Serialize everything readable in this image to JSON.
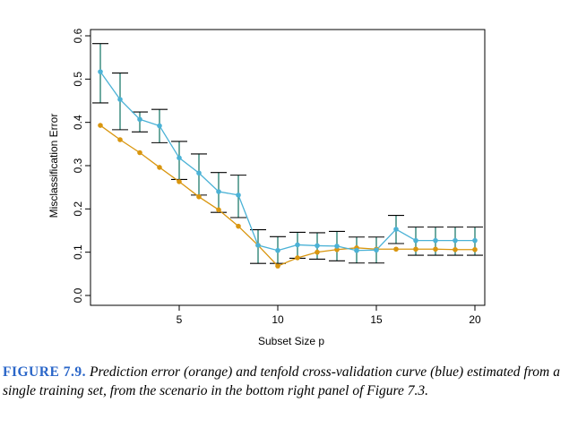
{
  "chart_data": {
    "type": "line",
    "xlabel": "Subset Size p",
    "ylabel": "Misclassification Error",
    "xlim": [
      0.5,
      20.5
    ],
    "ylim": [
      0.0,
      0.6
    ],
    "xticks": [
      5,
      10,
      15,
      20
    ],
    "yticks": [
      0.0,
      0.1,
      0.2,
      0.3,
      0.4,
      0.5,
      0.6
    ],
    "xtick_labels": [
      "5",
      "10",
      "15",
      "20"
    ],
    "ytick_labels": [
      "0.0",
      "0.1",
      "0.2",
      "0.3",
      "0.4",
      "0.5",
      "0.6"
    ],
    "grid": false,
    "x": [
      1,
      2,
      3,
      4,
      5,
      6,
      7,
      8,
      9,
      10,
      11,
      12,
      13,
      14,
      15,
      16,
      17,
      18,
      19,
      20
    ],
    "series": [
      {
        "key": "prediction_error",
        "color": "#d9960f",
        "values": [
          0.393,
          0.36,
          0.33,
          0.296,
          0.263,
          0.228,
          0.198,
          0.16,
          0.116,
          0.068,
          0.087,
          0.1,
          0.106,
          0.11,
          0.107,
          0.107,
          0.107,
          0.107,
          0.106,
          0.106
        ]
      },
      {
        "key": "cv_error",
        "color": "#4bb2d6",
        "error_bar_color": "#1f7d6c",
        "values": [
          0.517,
          0.453,
          0.407,
          0.392,
          0.318,
          0.283,
          0.24,
          0.232,
          0.116,
          0.104,
          0.117,
          0.115,
          0.114,
          0.104,
          0.105,
          0.153,
          0.127,
          0.127,
          0.127,
          0.127
        ],
        "error_low": [
          0.445,
          0.383,
          0.378,
          0.353,
          0.268,
          0.232,
          0.192,
          0.18,
          0.074,
          0.074,
          0.086,
          0.084,
          0.08,
          0.075,
          0.075,
          0.12,
          0.093,
          0.093,
          0.093,
          0.093
        ],
        "error_high": [
          0.582,
          0.514,
          0.424,
          0.43,
          0.356,
          0.327,
          0.284,
          0.278,
          0.152,
          0.136,
          0.146,
          0.145,
          0.148,
          0.135,
          0.135,
          0.185,
          0.158,
          0.158,
          0.158,
          0.158
        ]
      }
    ]
  },
  "caption": {
    "label": "FIGURE 7.9.",
    "text": "Prediction error (orange) and tenfold cross-validation curve (blue) estimated from a single training set, from the scenario in the bottom right panel of Figure 7.3."
  },
  "colors": {
    "axis": "#000000",
    "caption_label": "#2a66c8"
  }
}
